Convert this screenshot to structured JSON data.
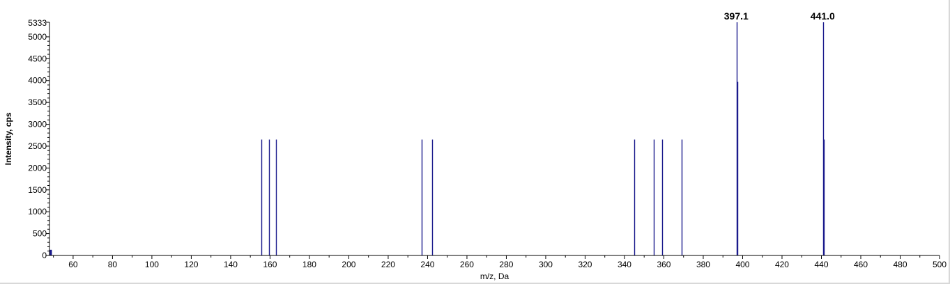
{
  "chart_data": {
    "type": "bar",
    "xlabel": "m/z, Da",
    "ylabel": "Intensity, cps",
    "xlim": [
      48,
      500
    ],
    "ylim": [
      0,
      5333
    ],
    "y_max_label": "5333",
    "x_ticks": [
      60,
      80,
      100,
      120,
      140,
      160,
      180,
      200,
      220,
      240,
      260,
      280,
      300,
      320,
      340,
      360,
      380,
      400,
      420,
      440,
      460,
      480,
      500
    ],
    "y_ticks": [
      0,
      500,
      1000,
      1500,
      2000,
      2500,
      3000,
      3500,
      4000,
      4500,
      5000
    ],
    "grid": false,
    "color": "#1a1a8c",
    "series": [
      {
        "x": [
          48.5,
          155.5,
          159.5,
          163.0,
          237.0,
          242.3,
          345.0,
          355.0,
          359.2,
          369.0,
          397.1,
          397.3,
          441.0,
          441.3
        ],
        "values": [
          130,
          2650,
          2650,
          2650,
          2650,
          2650,
          2650,
          2650,
          2650,
          2650,
          5333,
          3970,
          5333,
          2650
        ]
      }
    ],
    "peak_labels": [
      {
        "x": 397.1,
        "text": "397.1"
      },
      {
        "x": 441.0,
        "text": "441.0"
      }
    ]
  }
}
